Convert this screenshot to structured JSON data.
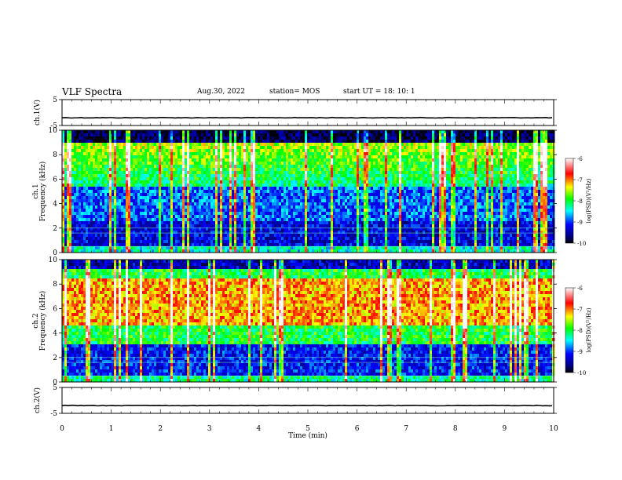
{
  "header": {
    "title": "VLF Spectra",
    "date": "Aug.30, 2022",
    "station": "station= MOS",
    "start": "start  UT =   18: 10: 1"
  },
  "chart_data": [
    {
      "type": "line",
      "panel": "ch1-waveform",
      "ylabel": "ch.1(V)",
      "yticks": [
        "5",
        "-5"
      ],
      "ylim": [
        -5,
        5
      ],
      "xlim": [
        0,
        10
      ],
      "series": [
        {
          "values_description_note": "",
          "level": -2
        }
      ]
    },
    {
      "type": "heatmap",
      "panel": "ch1-spectrogram",
      "ylabel": "ch.1\nFrequency (kHz)",
      "ylabel_lines": [
        "ch.1",
        "Frequency (kHz)"
      ],
      "yticks": [
        "0",
        "2",
        "4",
        "6",
        "8",
        "10"
      ],
      "ylim": [
        0,
        10
      ],
      "xlim": [
        0,
        10
      ],
      "colorbar": {
        "label": "log(PSD)(V²/Hz)",
        "ticks": [
          "-6",
          "-7",
          "-8",
          "-9",
          "-10"
        ],
        "range": [
          -10,
          -6
        ]
      }
    },
    {
      "type": "heatmap",
      "panel": "ch2-spectrogram",
      "ylabel_lines": [
        "ch.2",
        "Frequency (kHz)"
      ],
      "yticks": [
        "0",
        "2",
        "4",
        "6",
        "8",
        "10"
      ],
      "ylim": [
        0,
        10
      ],
      "xlim": [
        0,
        10
      ],
      "colorbar": {
        "label": "log(PSD)(V²/Hz)",
        "ticks": [
          "-6",
          "-7",
          "-8",
          "-9",
          "-10"
        ],
        "range": [
          -10,
          -6
        ]
      }
    },
    {
      "type": "line",
      "panel": "ch2-waveform",
      "ylabel": "ch.2(V)",
      "yticks": [
        "5",
        "-5"
      ],
      "ylim": [
        -5,
        5
      ],
      "xlim": [
        0,
        10
      ],
      "series": [
        {
          "level": -2
        }
      ]
    }
  ],
  "xaxis": {
    "label": "Time  (min)",
    "ticks": [
      "0",
      "1",
      "2",
      "3",
      "4",
      "5",
      "6",
      "7",
      "8",
      "9",
      "10"
    ]
  }
}
